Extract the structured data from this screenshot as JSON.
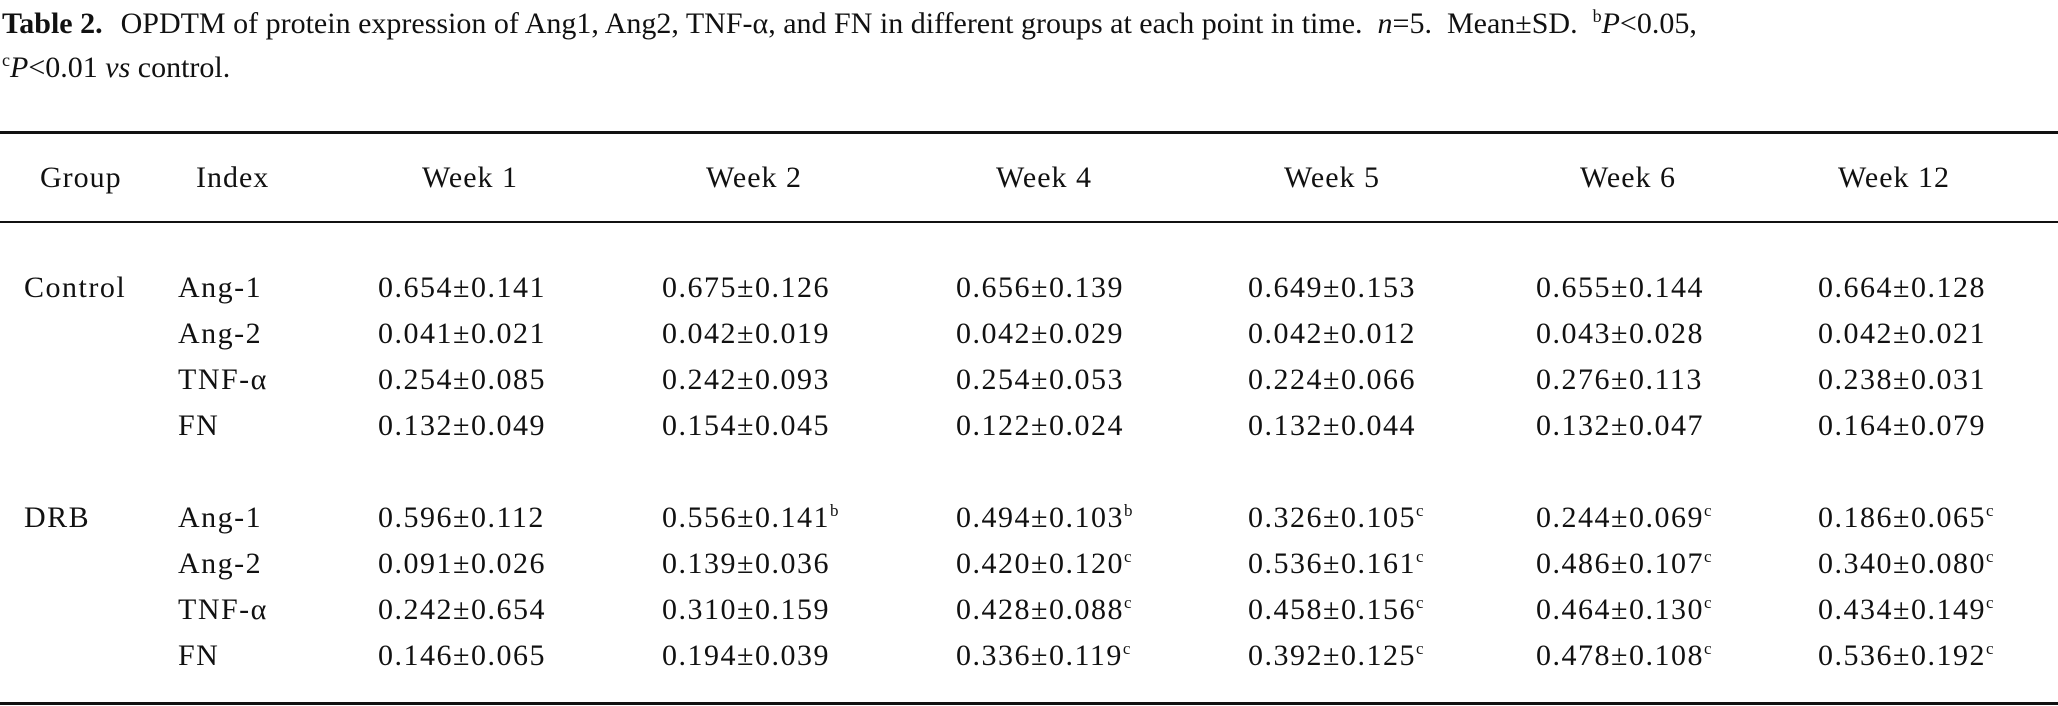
{
  "caption": {
    "label": "Table 2.",
    "text_1": "OPDTM of protein expression of Ang1, Ang2, TNF-α, and FN in different groups at each point in time.",
    "n_italic": "n",
    "n_value": "=5.",
    "meansd": "Mean±SD.",
    "sup_b": "b",
    "p_italic_1": "P",
    "p_b_value": "<0.05,",
    "sup_c": "c",
    "p_italic_2": "P",
    "p_c_value": "<0.01",
    "vs_italic": "vs",
    "control_word": "control."
  },
  "headers": [
    "Group",
    "Index",
    "Week 1",
    "Week 2",
    "Week 4",
    "Week 5",
    "Week 6",
    "Week 12"
  ],
  "groups": [
    {
      "name": "Control",
      "rows": [
        {
          "index": "Ang-1",
          "values": [
            "0.654±0.141",
            "0.675±0.126",
            "0.656±0.139",
            "0.649±0.153",
            "0.655±0.144",
            "0.664±0.128"
          ],
          "sups": [
            "",
            "",
            "",
            "",
            "",
            ""
          ]
        },
        {
          "index": "Ang-2",
          "values": [
            "0.041±0.021",
            "0.042±0.019",
            "0.042±0.029",
            "0.042±0.012",
            "0.043±0.028",
            "0.042±0.021"
          ],
          "sups": [
            "",
            "",
            "",
            "",
            "",
            ""
          ]
        },
        {
          "index": "TNF-α",
          "values": [
            "0.254±0.085",
            "0.242±0.093",
            "0.254±0.053",
            "0.224±0.066",
            "0.276±0.113",
            "0.238±0.031"
          ],
          "sups": [
            "",
            "",
            "",
            "",
            "",
            ""
          ]
        },
        {
          "index": "FN",
          "values": [
            "0.132±0.049",
            "0.154±0.045",
            "0.122±0.024",
            "0.132±0.044",
            "0.132±0.047",
            "0.164±0.079"
          ],
          "sups": [
            "",
            "",
            "",
            "",
            "",
            ""
          ]
        }
      ]
    },
    {
      "name": "DRB",
      "rows": [
        {
          "index": "Ang-1",
          "values": [
            "0.596±0.112",
            "0.556±0.141",
            "0.494±0.103",
            "0.326±0.105",
            "0.244±0.069",
            "0.186±0.065"
          ],
          "sups": [
            "",
            "b",
            "b",
            "c",
            "c",
            "c"
          ]
        },
        {
          "index": "Ang-2",
          "values": [
            "0.091±0.026",
            "0.139±0.036",
            "0.420±0.120",
            "0.536±0.161",
            "0.486±0.107",
            "0.340±0.080"
          ],
          "sups": [
            "",
            "",
            "c",
            "c",
            "c",
            "c"
          ]
        },
        {
          "index": "TNF-α",
          "values": [
            "0.242±0.654",
            "0.310±0.159",
            "0.428±0.088",
            "0.458±0.156",
            "0.464±0.130",
            "0.434±0.149"
          ],
          "sups": [
            "",
            "",
            "c",
            "c",
            "c",
            "c"
          ]
        },
        {
          "index": "FN",
          "values": [
            "0.146±0.065",
            "0.194±0.039",
            "0.336±0.119",
            "0.392±0.125",
            "0.478±0.108",
            "0.536±0.192"
          ],
          "sups": [
            "",
            "",
            "c",
            "c",
            "c",
            "c"
          ]
        }
      ]
    }
  ]
}
